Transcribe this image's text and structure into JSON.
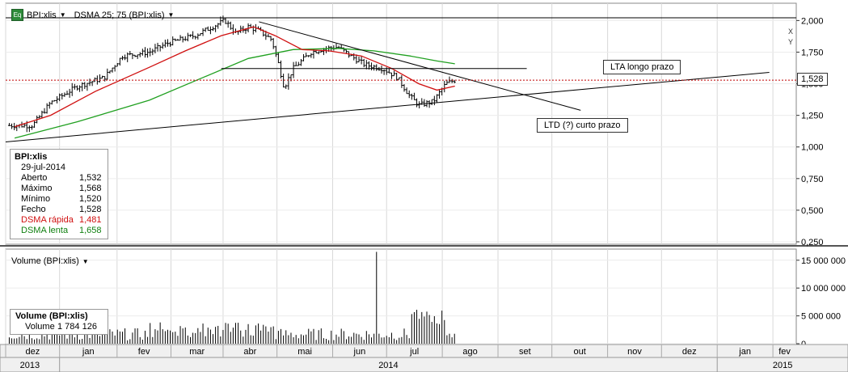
{
  "header": {
    "icon_label": "Eq",
    "instrument": "BPI:xlis",
    "indicator": "DSMA 25; 75 (BPI:xlis)"
  },
  "info_box": {
    "title": "BPI:xlis",
    "date": "29-jul-2014",
    "rows": [
      {
        "label": "Aberto",
        "value": "1,532",
        "color": "#000000"
      },
      {
        "label": "Máximo",
        "value": "1,568",
        "color": "#000000"
      },
      {
        "label": "Mínimo",
        "value": "1,520",
        "color": "#000000"
      },
      {
        "label": "Fecho",
        "value": "1,528",
        "color": "#000000"
      },
      {
        "label": "DSMA rápida",
        "value": "1,481",
        "color": "#d01010"
      },
      {
        "label": "DSMA lenta",
        "value": "1,658",
        "color": "#108010"
      }
    ]
  },
  "volume_header": "Volume (BPI:xlis)",
  "volume_box": {
    "title": "Volume (BPI:xlis)",
    "label": "Volume",
    "value": "1 784 126"
  },
  "annotations": {
    "lta": "LTA longo prazo",
    "ltd": "LTD (?) curto prazo"
  },
  "last_price_label": "1,528",
  "xy_labels": [
    "X",
    "Y"
  ],
  "colors": {
    "fast_ma": "#d01010",
    "slow_ma": "#20a020",
    "candle": "#000000",
    "grid": "#d8d8d8",
    "last_price": "#c00000"
  },
  "chart_data": {
    "type": "candlestick",
    "price_axis": {
      "ticks": [
        "2,000",
        "1,750",
        "1,500",
        "1,250",
        "1,000",
        "0,750",
        "0,500",
        "0,250"
      ],
      "tick_values": [
        2.0,
        1.75,
        1.5,
        1.25,
        1.0,
        0.75,
        0.5,
        0.25
      ],
      "range": [
        0.25,
        2.06
      ]
    },
    "volume_axis": {
      "ticks": [
        "15 000 000",
        "10 000 000",
        "5 000 000",
        "0"
      ],
      "tick_values": [
        15000000,
        10000000,
        5000000,
        0
      ]
    },
    "months": [
      "dez",
      "jan",
      "fev",
      "mar",
      "abr",
      "mai",
      "jun",
      "jul",
      "ago",
      "set",
      "out",
      "nov",
      "dez",
      "jan",
      "fev"
    ],
    "month_days": [
      0,
      30,
      62,
      92,
      121,
      151,
      182,
      212,
      243,
      274,
      304,
      335,
      365,
      396,
      427
    ],
    "years": [
      {
        "label": "2013",
        "day": 0
      },
      {
        "label": "2014",
        "day": 30
      },
      {
        "label": "2015",
        "day": 396
      }
    ],
    "close_keypoints": [
      [
        0,
        1.17
      ],
      [
        15,
        1.17
      ],
      [
        25,
        1.35
      ],
      [
        40,
        1.48
      ],
      [
        55,
        1.55
      ],
      [
        65,
        1.72
      ],
      [
        80,
        1.75
      ],
      [
        90,
        1.82
      ],
      [
        105,
        1.88
      ],
      [
        115,
        1.95
      ],
      [
        122,
        2.0
      ],
      [
        128,
        1.9
      ],
      [
        135,
        1.95
      ],
      [
        141,
        1.92
      ],
      [
        148,
        1.85
      ],
      [
        152,
        1.65
      ],
      [
        155,
        1.47
      ],
      [
        160,
        1.62
      ],
      [
        170,
        1.75
      ],
      [
        178,
        1.78
      ],
      [
        185,
        1.79
      ],
      [
        192,
        1.72
      ],
      [
        200,
        1.65
      ],
      [
        210,
        1.62
      ],
      [
        218,
        1.55
      ],
      [
        225,
        1.4
      ],
      [
        230,
        1.33
      ],
      [
        238,
        1.36
      ],
      [
        245,
        1.5
      ],
      [
        250,
        1.528
      ]
    ],
    "fast_ma": [
      [
        5,
        1.16
      ],
      [
        25,
        1.25
      ],
      [
        50,
        1.44
      ],
      [
        80,
        1.63
      ],
      [
        100,
        1.76
      ],
      [
        120,
        1.88
      ],
      [
        138,
        1.95
      ],
      [
        150,
        1.88
      ],
      [
        165,
        1.77
      ],
      [
        180,
        1.76
      ],
      [
        198,
        1.72
      ],
      [
        215,
        1.62
      ],
      [
        230,
        1.5
      ],
      [
        240,
        1.45
      ],
      [
        250,
        1.481
      ]
    ],
    "slow_ma": [
      [
        5,
        1.07
      ],
      [
        40,
        1.2
      ],
      [
        80,
        1.37
      ],
      [
        110,
        1.55
      ],
      [
        135,
        1.7
      ],
      [
        160,
        1.77
      ],
      [
        185,
        1.78
      ],
      [
        205,
        1.76
      ],
      [
        225,
        1.72
      ],
      [
        240,
        1.68
      ],
      [
        250,
        1.658
      ]
    ],
    "trendlines": [
      {
        "name": "LTA",
        "from": [
          0,
          1.04
        ],
        "to": [
          425,
          1.59
        ]
      },
      {
        "name": "LTD",
        "from": [
          141,
          1.99
        ],
        "to": [
          320,
          1.29
        ]
      },
      {
        "name": "resistance",
        "from": [
          120,
          1.62
        ],
        "to": [
          290,
          1.62
        ]
      }
    ],
    "last_close": 1.528,
    "volume_spike": {
      "day": 206,
      "value": 16500000
    },
    "last_volume": 1784126
  }
}
